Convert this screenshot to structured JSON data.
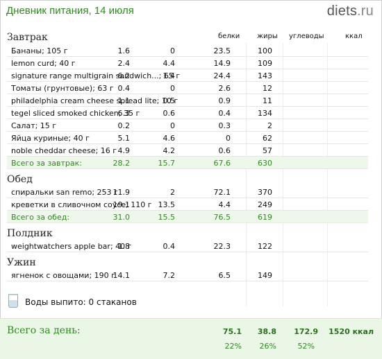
{
  "header": {
    "title": "Дневник питания, 14 июля",
    "logo_main": "diets",
    "logo_tld": ".ru"
  },
  "columns": {
    "protein": "белки",
    "fat": "жиры",
    "carbs": "углеводы",
    "kcal": "ккал"
  },
  "meals": {
    "breakfast": {
      "title": "Завтрак",
      "items": [
        {
          "name": "Бананы; 105 г",
          "p": "1.6",
          "f": "0",
          "c": "23.5",
          "k": "100"
        },
        {
          "name": "lemon curd; 40 г",
          "p": "2.4",
          "f": "4.4",
          "c": "14.9",
          "k": "109"
        },
        {
          "name": "signature range multigrain sandwich...; 65 г",
          "p": "6.2",
          "f": "1.4",
          "c": "24.4",
          "k": "143"
        },
        {
          "name": "Томаты (грунтовые); 63 г",
          "p": "0.4",
          "f": "0",
          "c": "2.6",
          "k": "12"
        },
        {
          "name": "philadelphia cream cheese spread lite; 10 г",
          "p": "1.1",
          "f": "0.5",
          "c": "0.9",
          "k": "11"
        },
        {
          "name": "tegel sliced smoked chicken; 35 г",
          "p": "6.3",
          "f": "0.6",
          "c": "0.4",
          "k": "134"
        },
        {
          "name": "Салат; 15 г",
          "p": "0.2",
          "f": "0",
          "c": "0.3",
          "k": "2"
        },
        {
          "name": "Яйца куриные; 40 г",
          "p": "5.1",
          "f": "4.6",
          "c": "0",
          "k": "62"
        },
        {
          "name": "noble cheddar cheese; 16 г",
          "p": "4.9",
          "f": "4.2",
          "c": "0.6",
          "k": "57"
        }
      ],
      "total": {
        "name": "Всего за завтрак:",
        "p": "28.2",
        "f": "15.7",
        "c": "67.6",
        "k": "630"
      }
    },
    "lunch": {
      "title": "Обед",
      "items": [
        {
          "name": "спиральки san remo; 253 г",
          "p": "11.9",
          "f": "2",
          "c": "72.1",
          "k": "370"
        },
        {
          "name": "креветки в сливочном соусе; 110 г",
          "p": "19.1",
          "f": "13.5",
          "c": "4.4",
          "k": "249"
        }
      ],
      "total": {
        "name": "Всего за обед:",
        "p": "31.0",
        "f": "15.5",
        "c": "76.5",
        "k": "619"
      }
    },
    "snack": {
      "title": "Полдник",
      "items": [
        {
          "name": "weightwatchers apple bar; 40 г",
          "p": "1.8",
          "f": "0.4",
          "c": "22.3",
          "k": "122"
        }
      ]
    },
    "dinner": {
      "title": "Ужин",
      "items": [
        {
          "name": "ягненок с овощами; 190 г",
          "p": "14.1",
          "f": "7.2",
          "c": "6.5",
          "k": "149"
        }
      ]
    }
  },
  "water": {
    "label": "Воды выпито: 0 стаканов",
    "icon": "glass-icon"
  },
  "day_total": {
    "label": "Всего за день:",
    "protein": "75.1",
    "fat": "38.8",
    "carbs": "172.9",
    "kcal": "1520 ккал",
    "protein_pct": "22%",
    "fat_pct": "26%",
    "carbs_pct": "52%"
  },
  "colors": {
    "accent_green": "#2f8a1f",
    "total_bg": "#edf7ea"
  }
}
